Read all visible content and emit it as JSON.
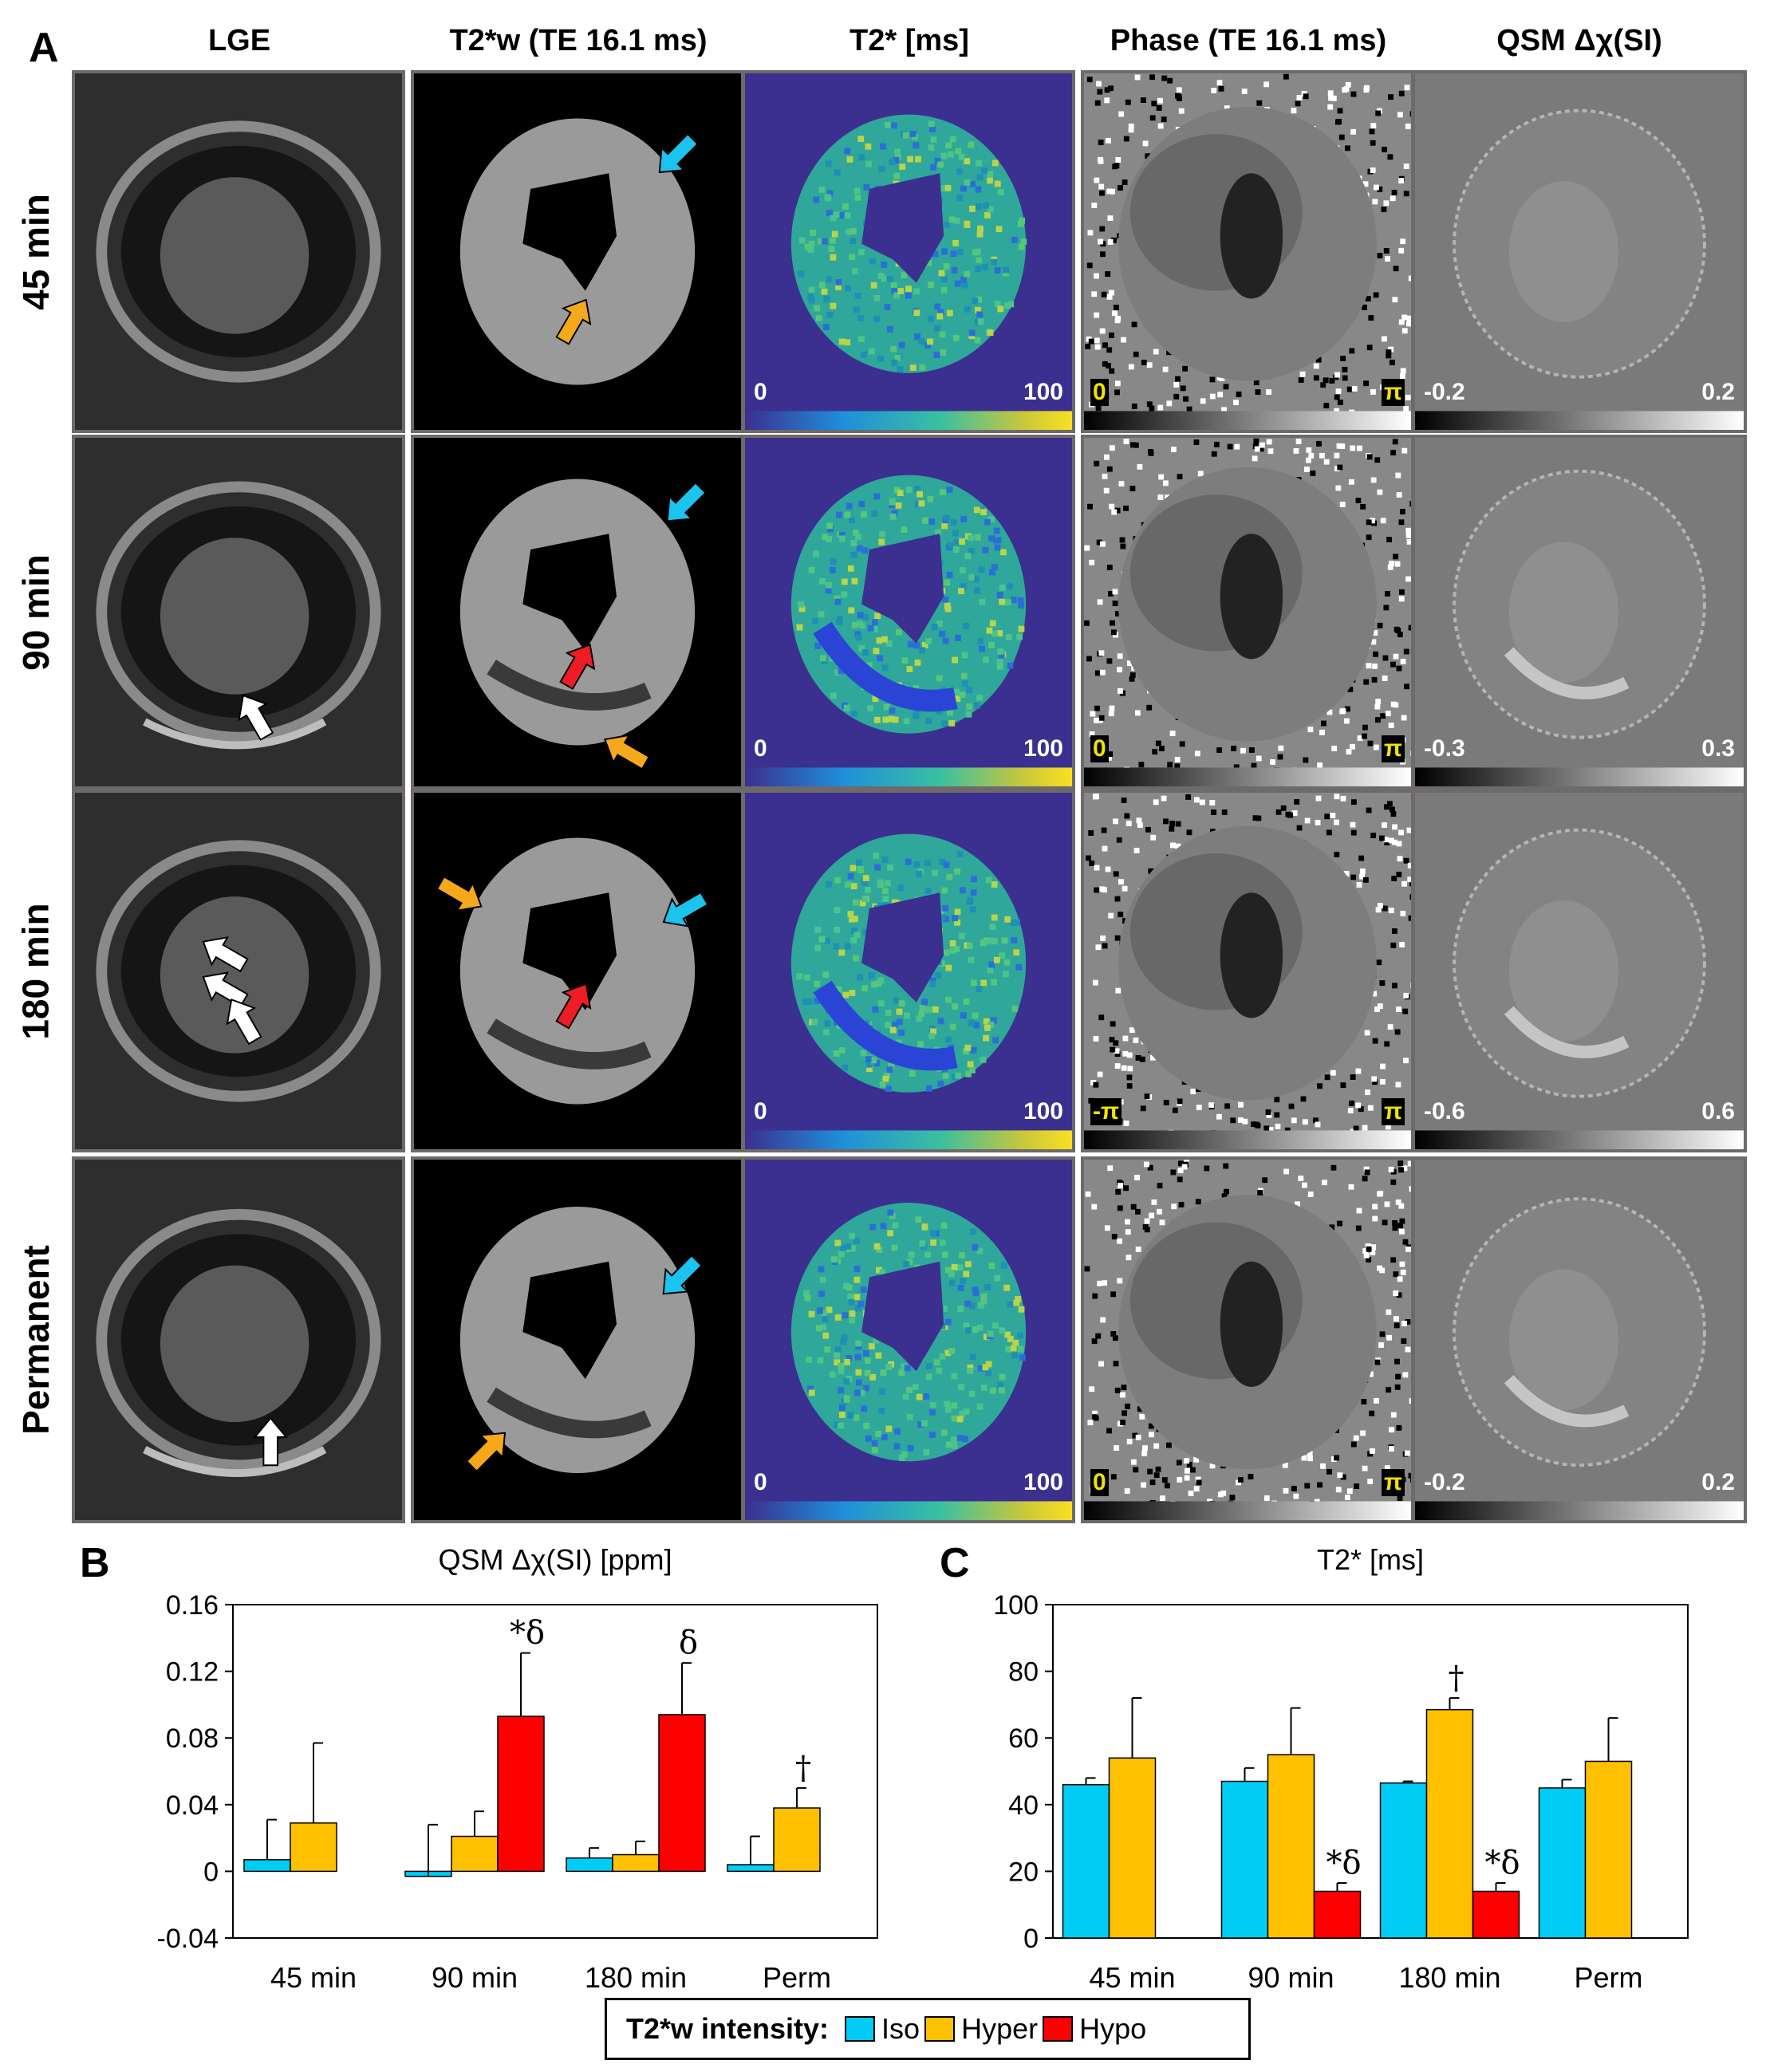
{
  "panel_a": {
    "letter": "A",
    "columns": [
      "LGE",
      "T2*w (TE 16.1 ms)",
      "T2* [ms]",
      "Phase (TE 16.1 ms)",
      "QSM Δχ(SI)"
    ],
    "rows": [
      {
        "label": "45 min",
        "t2star_min": "0",
        "t2star_max": "100",
        "phase_min": "0",
        "phase_max": "π",
        "qsm_min": "-0.2",
        "qsm_max": "0.2"
      },
      {
        "label": "90 min",
        "t2star_min": "0",
        "t2star_max": "100",
        "phase_min": "0",
        "phase_max": "π",
        "qsm_min": "-0.3",
        "qsm_max": "0.3"
      },
      {
        "label": "180 min",
        "t2star_min": "0",
        "t2star_max": "100",
        "phase_min": "-π",
        "phase_max": "π",
        "qsm_min": "-0.6",
        "qsm_max": "0.6"
      },
      {
        "label": "Permanent",
        "t2star_min": "0",
        "t2star_max": "100",
        "phase_min": "0",
        "phase_max": "π",
        "qsm_min": "-0.2",
        "qsm_max": "0.2"
      }
    ],
    "arrow_colors": {
      "iso": "#1bc3ee",
      "hyper": "#f5a81c",
      "hypo": "#ee1c24",
      "lge": "#ffffff"
    }
  },
  "colors": {
    "iso": "#00ccf5",
    "hyper": "#ffc000",
    "hypo": "#ff0000"
  },
  "legend": {
    "title": "T2*w intensity:",
    "items": [
      "Iso",
      "Hyper",
      "Hypo"
    ]
  },
  "chart_data": [
    {
      "panel": "B",
      "type": "bar",
      "title": "QSM Δχ(SI) [ppm]",
      "categories": [
        "45 min",
        "90 min",
        "180 min",
        "Perm"
      ],
      "ylim": [
        -0.04,
        0.16
      ],
      "yticks": [
        "-0.04",
        "0",
        "0.04",
        "0.08",
        "0.12",
        "0.16"
      ],
      "series": [
        {
          "name": "Iso",
          "values": [
            0.007,
            -0.003,
            0.008,
            0.004
          ],
          "errors": [
            0.024,
            0.031,
            0.006,
            0.017
          ]
        },
        {
          "name": "Hyper",
          "values": [
            0.029,
            0.021,
            0.01,
            0.038
          ],
          "errors": [
            0.048,
            0.015,
            0.008,
            0.012
          ]
        },
        {
          "name": "Hypo",
          "values": [
            null,
            0.093,
            0.094,
            null
          ],
          "errors": [
            null,
            0.038,
            0.031,
            null
          ]
        }
      ],
      "annotations": [
        {
          "category": "90 min",
          "series": "Hypo",
          "text": "*δ"
        },
        {
          "category": "180 min",
          "series": "Hypo",
          "text": "δ"
        },
        {
          "category": "Perm",
          "series": "Hyper",
          "text": "†"
        }
      ]
    },
    {
      "panel": "C",
      "type": "bar",
      "title": "T2* [ms]",
      "categories": [
        "45 min",
        "90 min",
        "180 min",
        "Perm"
      ],
      "ylim": [
        0,
        100
      ],
      "yticks": [
        "0",
        "20",
        "40",
        "60",
        "80",
        "100"
      ],
      "series": [
        {
          "name": "Iso",
          "values": [
            46,
            47,
            46.5,
            45
          ],
          "errors": [
            2,
            4,
            0.5,
            2.5
          ]
        },
        {
          "name": "Hyper",
          "values": [
            54,
            55,
            68.5,
            53
          ],
          "errors": [
            18,
            14,
            3.5,
            13
          ]
        },
        {
          "name": "Hypo",
          "values": [
            null,
            14,
            14,
            null
          ],
          "errors": [
            null,
            2.5,
            2.5,
            null
          ]
        }
      ],
      "annotations": [
        {
          "category": "90 min",
          "series": "Hypo",
          "text": "*δ"
        },
        {
          "category": "180 min",
          "series": "Hypo",
          "text": "*δ"
        },
        {
          "category": "180 min",
          "series": "Hyper",
          "text": "†"
        }
      ]
    }
  ]
}
